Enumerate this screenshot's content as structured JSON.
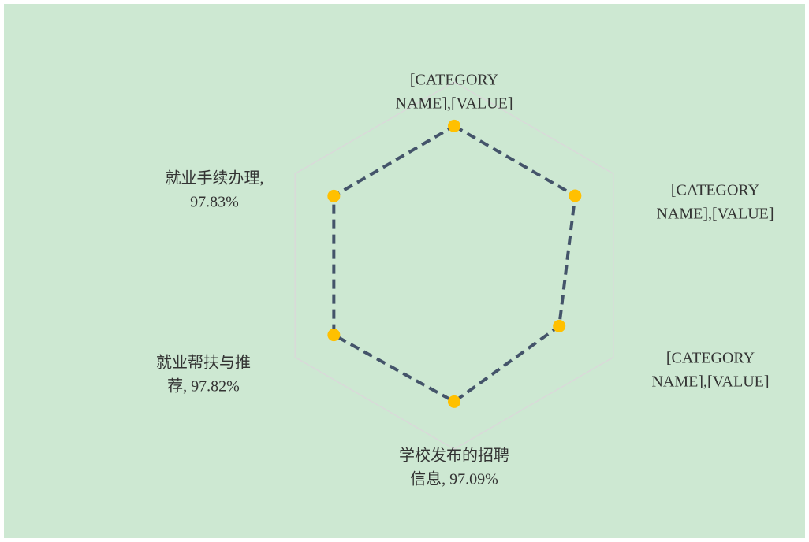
{
  "chart_data": {
    "type": "radar",
    "values": [
      98.0,
      98.0,
      93.0,
      97.09,
      97.82,
      97.83
    ],
    "value_labels": [
      [
        "[CATEGORY",
        "NAME],[VALUE]"
      ],
      [
        "[CATEGORY",
        "NAME],[VALUE]"
      ],
      [
        "[CATEGORY",
        "NAME],[VALUE]"
      ],
      [
        "学校发布的招聘",
        "信息, 97.09%"
      ],
      [
        "就业帮扶与推",
        "荐, 97.82%"
      ],
      [
        "就业手续办理,",
        "97.83%"
      ]
    ],
    "rlim": [
      60,
      110
    ],
    "color": "#44546a",
    "marker_color": "#ffc000",
    "grid_color": "#d9d9d9",
    "background": "#cde8d2"
  }
}
